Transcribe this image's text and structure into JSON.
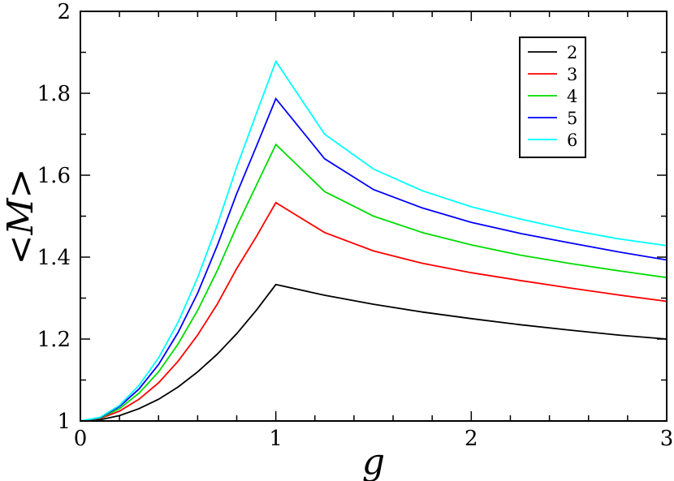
{
  "chart_data": {
    "type": "line",
    "xlabel": "g",
    "ylabel": "<M>",
    "xlim": [
      0,
      3
    ],
    "ylim": [
      1,
      2
    ],
    "x_ticks": [
      "0",
      "1",
      "2",
      "3"
    ],
    "y_ticks": [
      "1",
      "1.2",
      "1.4",
      "1.6",
      "1.8",
      "2"
    ],
    "grid": false,
    "legend_position": "top-right",
    "series": [
      {
        "name": "2",
        "color": "#000000",
        "x": [
          0,
          0.1,
          0.2,
          0.3,
          0.4,
          0.5,
          0.6,
          0.7,
          0.8,
          0.9,
          1.0,
          1.25,
          1.5,
          1.75,
          2.0,
          2.25,
          2.5,
          2.75,
          3.0
        ],
        "y": [
          1.0,
          1.003,
          1.013,
          1.03,
          1.053,
          1.083,
          1.12,
          1.163,
          1.213,
          1.27,
          1.333,
          1.307,
          1.285,
          1.266,
          1.25,
          1.235,
          1.222,
          1.21,
          1.2
        ]
      },
      {
        "name": "3",
        "color": "#ff0000",
        "x": [
          0,
          0.1,
          0.2,
          0.3,
          0.4,
          0.5,
          0.6,
          0.7,
          0.8,
          0.9,
          1.0,
          1.25,
          1.5,
          1.75,
          2.0,
          2.25,
          2.5,
          2.75,
          3.0
        ],
        "y": [
          1.0,
          1.006,
          1.024,
          1.053,
          1.093,
          1.146,
          1.21,
          1.285,
          1.372,
          1.45,
          1.533,
          1.46,
          1.415,
          1.385,
          1.362,
          1.343,
          1.325,
          1.308,
          1.292
        ]
      },
      {
        "name": "4",
        "color": "#00dd00",
        "x": [
          0,
          0.1,
          0.2,
          0.3,
          0.4,
          0.5,
          0.6,
          0.7,
          0.8,
          0.9,
          1.0,
          1.25,
          1.5,
          1.75,
          2.0,
          2.25,
          2.5,
          2.75,
          3.0
        ],
        "y": [
          1.0,
          1.007,
          1.03,
          1.068,
          1.12,
          1.188,
          1.27,
          1.367,
          1.475,
          1.575,
          1.675,
          1.56,
          1.5,
          1.46,
          1.43,
          1.405,
          1.385,
          1.367,
          1.35
        ]
      },
      {
        "name": "5",
        "color": "#0000ff",
        "x": [
          0,
          0.1,
          0.2,
          0.3,
          0.4,
          0.5,
          0.6,
          0.7,
          0.8,
          0.9,
          1.0,
          1.25,
          1.5,
          1.75,
          2.0,
          2.25,
          2.5,
          2.75,
          3.0
        ],
        "y": [
          1.0,
          1.008,
          1.035,
          1.078,
          1.138,
          1.216,
          1.312,
          1.428,
          1.555,
          1.67,
          1.787,
          1.64,
          1.565,
          1.52,
          1.485,
          1.458,
          1.435,
          1.413,
          1.393
        ]
      },
      {
        "name": "6",
        "color": "#00ffff",
        "x": [
          0,
          0.1,
          0.2,
          0.3,
          0.4,
          0.5,
          0.6,
          0.7,
          0.8,
          0.9,
          1.0,
          1.25,
          1.5,
          1.75,
          2.0,
          2.25,
          2.5,
          2.75,
          3.0
        ],
        "y": [
          1.0,
          1.009,
          1.038,
          1.087,
          1.154,
          1.241,
          1.35,
          1.478,
          1.62,
          1.75,
          1.878,
          1.7,
          1.615,
          1.562,
          1.523,
          1.493,
          1.467,
          1.445,
          1.428
        ]
      }
    ]
  }
}
